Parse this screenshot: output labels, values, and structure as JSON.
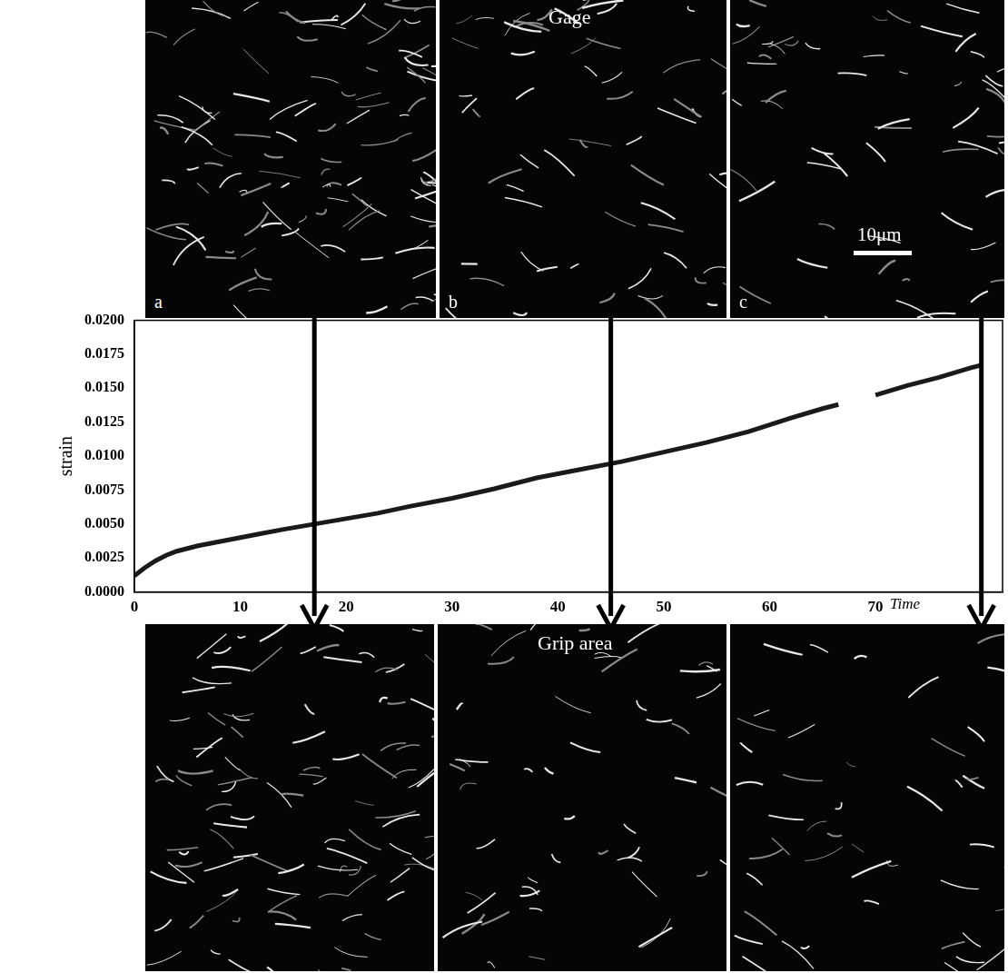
{
  "chart_data": {
    "type": "line",
    "x_label": "Time",
    "y_label": "strain",
    "x": [
      0,
      1,
      2,
      3,
      4,
      5,
      6,
      8,
      10,
      12,
      14,
      17,
      20,
      23,
      26,
      30,
      34,
      38,
      42,
      46,
      50,
      54,
      58,
      62,
      65,
      66.5,
      67.5,
      70,
      73,
      76,
      79,
      80
    ],
    "values": [
      0.0012,
      0.0018,
      0.0023,
      0.0027,
      0.003,
      0.0032,
      0.0034,
      0.0037,
      0.004,
      0.0043,
      0.0046,
      0.005,
      0.0054,
      0.0058,
      0.0063,
      0.0069,
      0.0076,
      0.0084,
      0.009,
      0.0096,
      0.0103,
      0.011,
      0.0118,
      0.0128,
      0.0135,
      0.0138,
      null,
      0.0145,
      0.0152,
      0.0158,
      0.0165,
      0.0167
    ],
    "color": "#1a1a1a",
    "line_style": "solid",
    "xlim": [
      0,
      82
    ],
    "xticks": [
      0,
      10,
      20,
      30,
      40,
      50,
      60,
      70
    ],
    "ylim": [
      0,
      0.02
    ],
    "yticks": [
      {
        "value": 0,
        "label": "0.0000"
      },
      {
        "value": 0.0025,
        "label": "0.0025"
      },
      {
        "value": 0.005,
        "label": "0.0050"
      },
      {
        "value": 0.0075,
        "label": "0.0075"
      },
      {
        "value": 0.01,
        "label": "0.0100"
      },
      {
        "value": 0.0125,
        "label": "0.0125"
      },
      {
        "value": 0.015,
        "label": "0.0150"
      },
      {
        "value": 0.0175,
        "label": "0.0175"
      },
      {
        "value": 0.02,
        "label": "0.0200"
      }
    ],
    "grid": false,
    "arrows_x": [
      17,
      45,
      80
    ]
  },
  "images": {
    "top": {
      "title": "Gage",
      "panel_labels": [
        "a",
        "b",
        "c"
      ],
      "scale_bar": "10μm"
    },
    "bottom": {
      "title": "Grip area"
    }
  }
}
